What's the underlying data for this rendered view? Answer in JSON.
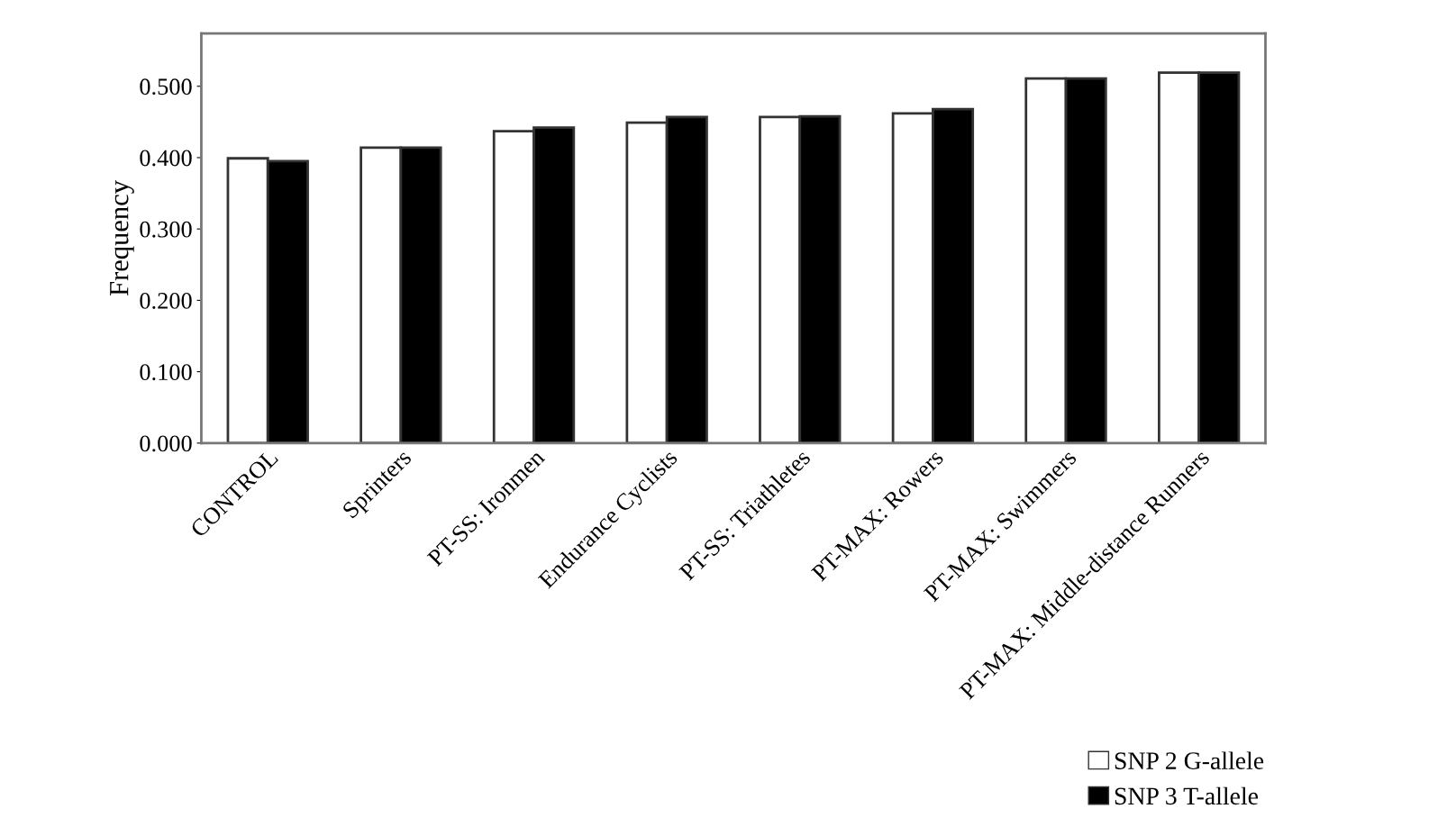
{
  "chart_data": {
    "type": "bar",
    "ylabel": "Frequency",
    "categories": [
      "CONTROL",
      "Sprinters",
      "PT-SS: Ironmen",
      "Endurance Cyclists",
      "PT-SS: Triathletes",
      "PT-MAX: Rowers",
      "PT-MAX: Swimmers",
      "PT-MAX: Middle-distance Runners"
    ],
    "series": [
      {
        "name": "SNP 2 G-allele",
        "color": "#ffffff",
        "values": [
          0.399,
          0.414,
          0.437,
          0.449,
          0.457,
          0.462,
          0.511,
          0.519
        ]
      },
      {
        "name": "SNP 3 T-allele",
        "color": "#000000",
        "values": [
          0.395,
          0.414,
          0.442,
          0.457,
          0.458,
          0.468,
          0.511,
          0.519
        ]
      }
    ],
    "ylim": [
      0,
      0.574
    ],
    "yticks": [
      {
        "value": 0,
        "label": "0.000"
      },
      {
        "value": 0.1,
        "label": "0.100"
      },
      {
        "value": 0.2,
        "label": "0.200"
      },
      {
        "value": 0.3,
        "label": "0.300"
      },
      {
        "value": 0.4,
        "label": "0.400"
      },
      {
        "value": 0.5,
        "label": "0.500"
      }
    ],
    "legend": "bottom right",
    "grid": false
  }
}
